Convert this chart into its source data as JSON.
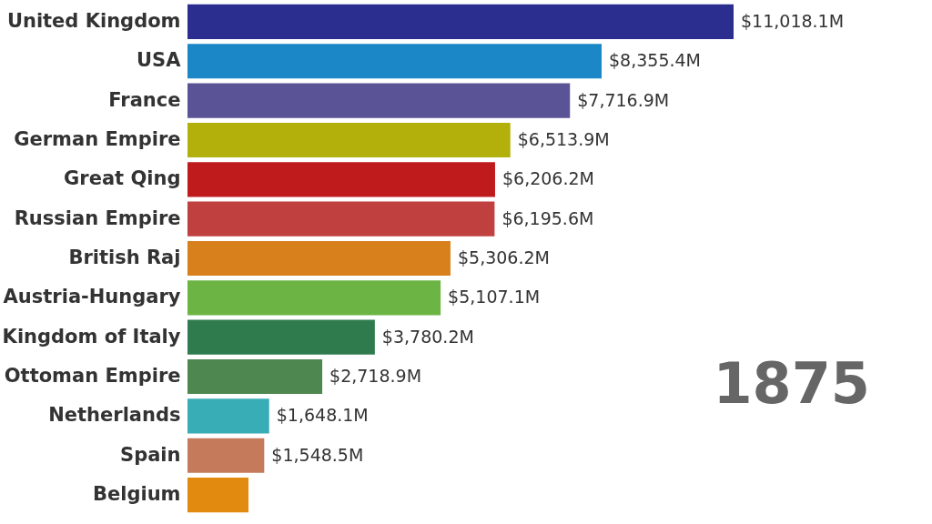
{
  "chart_data": {
    "type": "bar",
    "orientation": "horizontal",
    "categories": [
      "United Kingdom",
      "USA",
      "France",
      "German Empire",
      "Great Qing",
      "Russian Empire",
      "British Raj",
      "Austria-Hungary",
      "Kingdom of Italy",
      "Ottoman Empire",
      "Netherlands",
      "Spain",
      "Belgium"
    ],
    "values": [
      11018.1,
      8355.4,
      7716.9,
      6513.9,
      6206.2,
      6195.6,
      5306.2,
      5107.1,
      3780.2,
      2718.9,
      1648.1,
      1548.5,
      1230
    ],
    "colors": [
      "#2b2e8e",
      "#1b87c6",
      "#5a5497",
      "#b3b00c",
      "#bf1b1c",
      "#c0403f",
      "#d8801c",
      "#6cb545",
      "#2f7b4e",
      "#4e874f",
      "#38adb6",
      "#c47a5b",
      "#e2890f"
    ],
    "value_labels": [
      "$11,018.1M",
      "$8,355.4M",
      "$7,716.9M",
      "$6,513.9M",
      "$6,206.2M",
      "$6,195.6M",
      "$5,306.2M",
      "$5,107.1M",
      "$3,780.2M",
      "$2,718.9M",
      "$1,648.1M",
      "$1,548.5M",
      null
    ],
    "annotations": [
      "1875"
    ]
  }
}
